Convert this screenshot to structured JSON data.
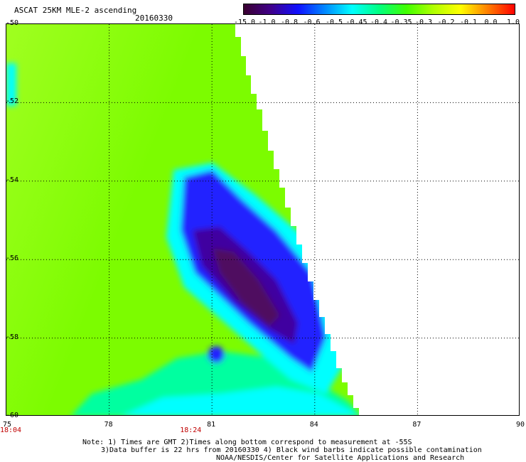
{
  "header": {
    "title": "ASCAT 25KM MLE-2 ascending",
    "date": "20160330"
  },
  "colorbar": {
    "labels": [
      "-15.0",
      "-1.0",
      "-0.8",
      "-0.6",
      "-0.5",
      "-0.45",
      "-0.4",
      "-0.35",
      "-0.3",
      "-0.2",
      "-0.1",
      "0.0",
      "1.0"
    ],
    "colors": [
      "#3a0030",
      "#40008a",
      "#1010ff",
      "#0088ff",
      "#00ffff",
      "#00ff80",
      "#40ff00",
      "#b0ff00",
      "#ffff00",
      "#ff8000",
      "#ff0000"
    ]
  },
  "map": {
    "lon_range": [
      75,
      90
    ],
    "lat_range": [
      -60,
      -50
    ],
    "x_ticks": [
      "75",
      "78",
      "81",
      "84",
      "87",
      "90"
    ],
    "y_ticks": [
      "-50",
      "-52",
      "-54",
      "-56",
      "-58",
      "-60"
    ],
    "time_labels": [
      {
        "text": "18:04",
        "lon": 75
      },
      {
        "text": "18:24",
        "lon": 80.4
      }
    ],
    "palette": {
      "green": "#7cfc00",
      "lime": "#a0ff20",
      "aqua_green": "#00ffa0",
      "cyan": "#00ffff",
      "blue": "#2020ff",
      "dark_blue": "#4000a0",
      "purple": "#501060"
    }
  },
  "notes": {
    "line1": "Note: 1) Times are GMT 2)Times along bottom correspond to measurement at -55S",
    "line2": "3)Data buffer is 22 hrs from 20160330 4) Black wind barbs indicate possible contamination",
    "line3": "NOAA/NESDIS/Center for Satellite Applications and Research"
  }
}
